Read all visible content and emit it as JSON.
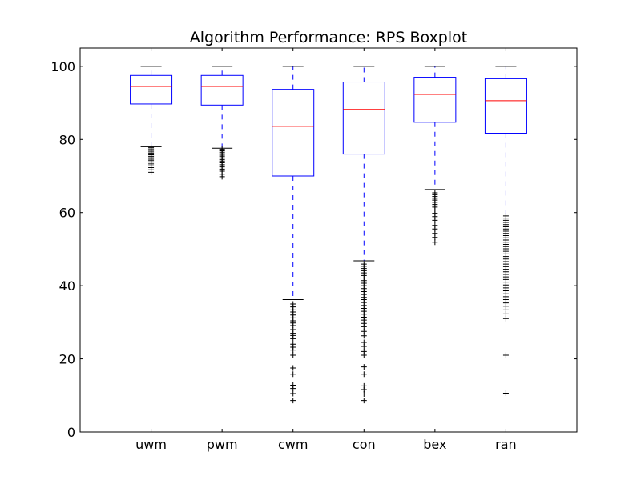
{
  "chart_data": {
    "type": "boxplot",
    "title": "Algorithm Performance: RPS Boxplot",
    "xlabel": "",
    "ylabel": "",
    "ylim": [
      0,
      105
    ],
    "yticks": [
      0,
      20,
      40,
      60,
      80,
      100
    ],
    "ytick_labels": [
      "0",
      "20",
      "40",
      "60",
      "80",
      "100"
    ],
    "grid": false,
    "categories": [
      "uwm",
      "pwm",
      "cwm",
      "con",
      "bex",
      "ran"
    ],
    "boxes": [
      {
        "label": "uwm",
        "whisker_low": 78.0,
        "q1": 89.7,
        "median": 94.5,
        "q3": 97.5,
        "whisker_high": 100,
        "outliers": [
          77.8,
          77.4,
          77.0,
          76.6,
          76.2,
          75.8,
          75.4,
          75.0,
          74.6,
          74.2,
          73.8,
          73.3,
          72.8,
          72.3,
          71.7,
          71.0
        ]
      },
      {
        "label": "pwm",
        "whisker_low": 77.6,
        "q1": 89.4,
        "median": 94.5,
        "q3": 97.5,
        "whisker_high": 100,
        "outliers": [
          77.3,
          76.9,
          76.5,
          76.1,
          75.7,
          75.3,
          74.9,
          74.5,
          74.1,
          73.6,
          73.1,
          72.5,
          71.9,
          71.3,
          70.5,
          69.8
        ]
      },
      {
        "label": "cwm",
        "whisker_low": 36.2,
        "q1": 70.0,
        "median": 83.6,
        "q3": 93.7,
        "whisker_high": 100,
        "outliers": [
          35.0,
          34.2,
          33.4,
          32.8,
          32.0,
          31.2,
          30.4,
          29.8,
          29.1,
          28.0,
          27.0,
          26.4,
          25.5,
          24.0,
          23.2,
          22.4,
          21.0,
          17.5,
          15.8,
          12.8,
          11.9,
          10.5,
          8.6
        ]
      },
      {
        "label": "con",
        "whisker_low": 46.8,
        "q1": 76.0,
        "median": 88.2,
        "q3": 95.7,
        "whisker_high": 100,
        "outliers": [
          45.9,
          45.3,
          44.7,
          44.1,
          43.5,
          42.8,
          42.1,
          41.4,
          40.7,
          40.0,
          39.2,
          38.4,
          37.6,
          36.8,
          36.2,
          35.4,
          34.6,
          33.8,
          33.0,
          32.2,
          31.4,
          30.6,
          29.7,
          28.8,
          27.5,
          26.3,
          24.5,
          23.4,
          22.0,
          21.0,
          17.8,
          15.8,
          12.6,
          11.6,
          10.4,
          8.6
        ]
      },
      {
        "label": "bex",
        "whisker_low": 66.3,
        "q1": 84.7,
        "median": 92.3,
        "q3": 97.0,
        "whisker_high": 100,
        "outliers": [
          65.4,
          64.9,
          64.4,
          63.9,
          63.4,
          62.8,
          62.2,
          61.5,
          60.7,
          59.8,
          58.9,
          57.9,
          56.5,
          55.5,
          54.3,
          53.2,
          51.9
        ]
      },
      {
        "label": "ran",
        "whisker_low": 59.6,
        "q1": 81.7,
        "median": 90.6,
        "q3": 96.6,
        "whisker_high": 100,
        "outliers": [
          59.1,
          58.5,
          57.9,
          57.3,
          56.7,
          56.1,
          55.5,
          54.9,
          54.3,
          53.7,
          53.1,
          52.5,
          51.9,
          51.3,
          50.7,
          50.1,
          49.4,
          48.7,
          48.0,
          47.3,
          46.6,
          45.9,
          45.2,
          44.5,
          43.8,
          43.1,
          42.4,
          41.7,
          41.0,
          40.2,
          39.4,
          38.6,
          37.8,
          37.0,
          36.2,
          35.3,
          34.4,
          33.4,
          32.3,
          31.0,
          21.0,
          10.6
        ]
      }
    ],
    "colors": {
      "box": "#0000ff",
      "median": "#ff0000",
      "whisker": "#0000ff",
      "cap": "#000000",
      "outlier": "#000000",
      "axes": "#000000"
    }
  }
}
